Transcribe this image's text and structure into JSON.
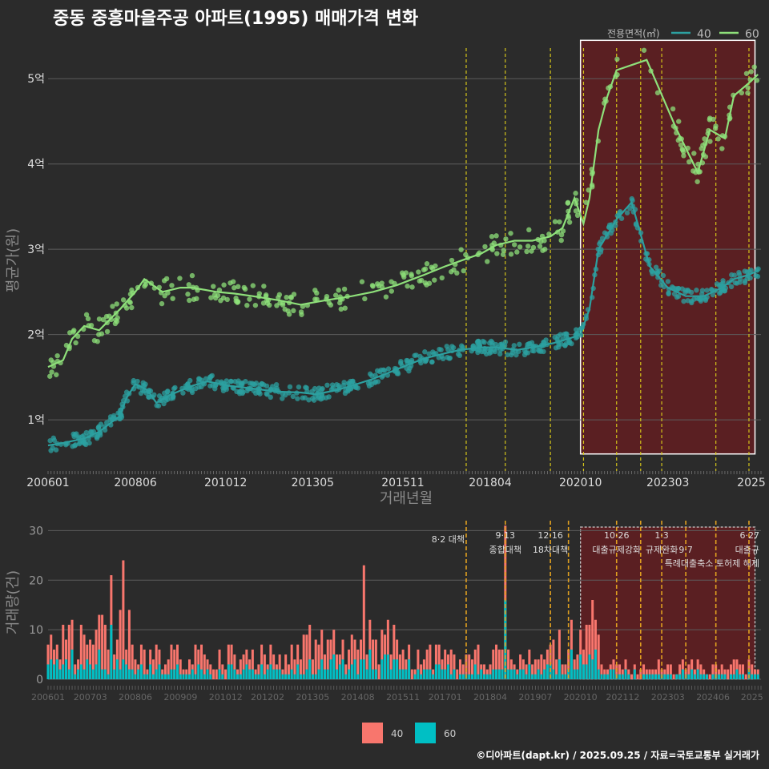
{
  "title": "중동 중흥마을주공 아파트(1995) 매매가격 변화",
  "footer": "©디아파트(dapt.kr) / 2025.09.25 / 자료=국토교통부 실거래가",
  "colors": {
    "background": "#2b2b2b",
    "series_40": "#2ca0a0",
    "series_60": "#8ee07a",
    "bar_40": "#f8766d",
    "bar_60": "#00bfc4",
    "highlight_fill": "#5a1f22",
    "event_line": "#d4c41a"
  },
  "chart_data": [
    {
      "type": "line",
      "id": "price",
      "title": "중동 중흥마을주공 아파트(1995) 매매가격 변화",
      "xlabel": "거래년월",
      "ylabel": "평균가(원)",
      "x_ticks": [
        "200601",
        "200806",
        "201012",
        "201305",
        "201511",
        "201804",
        "202010",
        "202303",
        "2025"
      ],
      "y_ticks": [
        {
          "value": 1,
          "label": "1억"
        },
        {
          "value": 2,
          "label": "2억"
        },
        {
          "value": 3,
          "label": "3억"
        },
        {
          "value": 4,
          "label": "4억"
        },
        {
          "value": 5,
          "label": "5억"
        }
      ],
      "ylim": [
        0.4,
        5.5
      ],
      "legend_title": "전용면적(㎡)",
      "legend": [
        "40",
        "60"
      ],
      "legend_position": "top-right",
      "highlight_range": [
        "2020-10",
        "2025-08"
      ],
      "event_dates": [
        "2017-08",
        "2018-09",
        "2019-12",
        "2020-11",
        "2021-10",
        "2022-06",
        "2023-01",
        "2024-07",
        "2025-06"
      ],
      "series": [
        {
          "name": "40",
          "points": [
            [
              "2006-01",
              0.7
            ],
            [
              "2006-06",
              0.73
            ],
            [
              "2007-01",
              0.78
            ],
            [
              "2007-06",
              0.86
            ],
            [
              "2008-01",
              1.05
            ],
            [
              "2008-03",
              1.25
            ],
            [
              "2008-06",
              1.42
            ],
            [
              "2008-10",
              1.35
            ],
            [
              "2009-01",
              1.2
            ],
            [
              "2009-06",
              1.3
            ],
            [
              "2010-01",
              1.4
            ],
            [
              "2010-06",
              1.45
            ],
            [
              "2011-01",
              1.4
            ],
            [
              "2011-06",
              1.38
            ],
            [
              "2012-01",
              1.35
            ],
            [
              "2012-06",
              1.33
            ],
            [
              "2013-01",
              1.32
            ],
            [
              "2013-06",
              1.3
            ],
            [
              "2014-01",
              1.35
            ],
            [
              "2014-06",
              1.4
            ],
            [
              "2015-01",
              1.48
            ],
            [
              "2015-06",
              1.55
            ],
            [
              "2016-01",
              1.65
            ],
            [
              "2016-06",
              1.72
            ],
            [
              "2017-01",
              1.78
            ],
            [
              "2017-06",
              1.82
            ],
            [
              "2018-01",
              1.85
            ],
            [
              "2018-06",
              1.85
            ],
            [
              "2019-01",
              1.82
            ],
            [
              "2019-06",
              1.85
            ],
            [
              "2020-01",
              1.9
            ],
            [
              "2020-06",
              1.95
            ],
            [
              "2020-10",
              2.0
            ],
            [
              "2021-01",
              2.3
            ],
            [
              "2021-04",
              3.0
            ],
            [
              "2021-10",
              3.35
            ],
            [
              "2022-03",
              3.55
            ],
            [
              "2022-09",
              2.8
            ],
            [
              "2023-03",
              2.55
            ],
            [
              "2023-09",
              2.45
            ],
            [
              "2024-03",
              2.45
            ],
            [
              "2024-09",
              2.55
            ],
            [
              "2025-01",
              2.65
            ],
            [
              "2025-06",
              2.7
            ],
            [
              "2025-09",
              2.75
            ]
          ]
        },
        {
          "name": "60",
          "points": [
            [
              "2006-01",
              1.62
            ],
            [
              "2006-06",
              1.7
            ],
            [
              "2006-09",
              1.95
            ],
            [
              "2007-01",
              2.1
            ],
            [
              "2007-06",
              2.05
            ],
            [
              "2008-01",
              2.3
            ],
            [
              "2008-06",
              2.5
            ],
            [
              "2008-09",
              2.65
            ],
            [
              "2009-03",
              2.5
            ],
            [
              "2009-09",
              2.55
            ],
            [
              "2010-01",
              2.55
            ],
            [
              "2010-09",
              2.5
            ],
            [
              "2011-03",
              2.48
            ],
            [
              "2011-09",
              2.45
            ],
            [
              "2012-06",
              2.4
            ],
            [
              "2013-01",
              2.35
            ],
            [
              "2013-09",
              2.4
            ],
            [
              "2014-06",
              2.45
            ],
            [
              "2015-01",
              2.5
            ],
            [
              "2015-09",
              2.58
            ],
            [
              "2016-06",
              2.7
            ],
            [
              "2017-01",
              2.8
            ],
            [
              "2017-09",
              2.9
            ],
            [
              "2018-01",
              2.95
            ],
            [
              "2018-06",
              3.05
            ],
            [
              "2018-12",
              3.1
            ],
            [
              "2019-06",
              3.1
            ],
            [
              "2019-12",
              3.15
            ],
            [
              "2020-04",
              3.25
            ],
            [
              "2020-08",
              3.6
            ],
            [
              "2020-11",
              3.3
            ],
            [
              "2021-01",
              3.6
            ],
            [
              "2021-04",
              4.4
            ],
            [
              "2021-07",
              4.8
            ],
            [
              "2021-10",
              5.1
            ],
            [
              "2022-08",
              5.22
            ],
            [
              "2023-06",
              4.4
            ],
            [
              "2024-01",
              3.9
            ],
            [
              "2024-05",
              4.4
            ],
            [
              "2024-10",
              4.3
            ],
            [
              "2025-01",
              4.8
            ],
            [
              "2025-06",
              4.95
            ],
            [
              "2025-09",
              5.05
            ]
          ]
        }
      ]
    },
    {
      "type": "bar",
      "id": "volume",
      "xlabel": "",
      "ylabel": "거래량(건)",
      "x_ticks": [
        "200601",
        "200703",
        "200806",
        "200909",
        "201012",
        "201202",
        "201305",
        "201408",
        "201511",
        "201701",
        "201804",
        "201907",
        "202010",
        "202112",
        "202303",
        "202406",
        "2025"
      ],
      "y_ticks": [
        0,
        10,
        20,
        30
      ],
      "ylim": [
        0,
        32
      ],
      "legend": [
        "40",
        "60"
      ],
      "legend_position": "bottom",
      "highlight_range": [
        "2020-10",
        "2025-08"
      ],
      "stacked": true,
      "events": [
        {
          "date": "2017-08",
          "label": "8·2 대책",
          "label2": ""
        },
        {
          "date": "2018-09",
          "label": "9·13",
          "label2": "종합대책"
        },
        {
          "date": "2019-12",
          "label": "12·16",
          "label2": "18차대책"
        },
        {
          "date": "2020-06",
          "label": "",
          "label2": ""
        },
        {
          "date": "2021-10",
          "label": "10·26",
          "label2": "대출규제강화"
        },
        {
          "date": "2022-06",
          "label": "",
          "label2": ""
        },
        {
          "date": "2023-01",
          "label": "1·3",
          "label2": "규제완화"
        },
        {
          "date": "2023-09",
          "label": "",
          "label2": "9·7"
        },
        {
          "date": "2024-07",
          "label": "",
          "label2": "특례대출축소 토허제 해제"
        },
        {
          "date": "2025-06",
          "label": "6·27",
          "label2": "대출규"
        }
      ],
      "series": [
        {
          "name": "40",
          "note": "total monthly volume (stacked top)"
        },
        {
          "name": "60",
          "note": "60㎡ share of monthly volume"
        }
      ],
      "peaks": [
        [
          "2008-02",
          24
        ],
        [
          "2007-10",
          21
        ],
        [
          "2014-10",
          23
        ],
        [
          "2018-09",
          31
        ],
        [
          "2021-02",
          16
        ]
      ]
    }
  ]
}
